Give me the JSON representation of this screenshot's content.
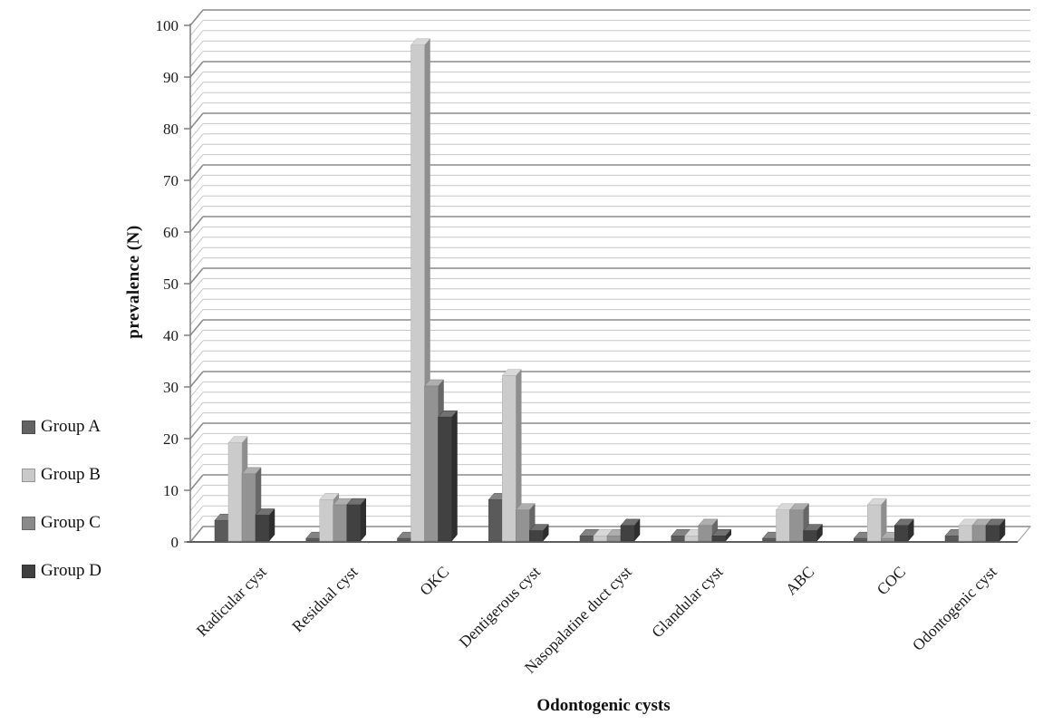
{
  "figure": {
    "y_axis_title": "prevalence (N)",
    "x_axis_title": "Odontogenic cysts"
  },
  "legend": {
    "position": "left",
    "items": [
      {
        "label": "Group A",
        "color": "#636363"
      },
      {
        "label": "Group B",
        "color": "#c9c9c9"
      },
      {
        "label": "Group C",
        "color": "#8a8a8a"
      },
      {
        "label": "Group D",
        "color": "#404040"
      }
    ]
  },
  "chart_data": {
    "type": "bar",
    "effect": "3d-clustered-column",
    "title": "",
    "xlabel": "Odontogenic cysts",
    "ylabel": "prevalence (N)",
    "categories": [
      "Radicular cyst",
      "Residual cyst",
      "OKC",
      "Dentigerous cyst",
      "Nasopalatine duct cyst",
      "Glandular cyst",
      "ABC",
      "COC",
      "Odontogenic cyst"
    ],
    "series": [
      {
        "name": "Group A",
        "color": "#5a5a5a",
        "values": [
          4,
          0.5,
          0.5,
          8,
          1,
          1,
          0.5,
          0.5,
          1
        ]
      },
      {
        "name": "Group B",
        "color": "#cbcbcb",
        "values": [
          19,
          8,
          96,
          32,
          1,
          1,
          6,
          7,
          3
        ]
      },
      {
        "name": "Group C",
        "color": "#939393",
        "values": [
          13,
          7,
          30,
          6,
          1,
          3,
          6,
          0.5,
          3
        ]
      },
      {
        "name": "Group D",
        "color": "#414141",
        "values": [
          5,
          7,
          24,
          2,
          3,
          1,
          2,
          3,
          3
        ]
      }
    ],
    "ylim": [
      0,
      100
    ],
    "yticks": [
      0,
      10,
      20,
      30,
      40,
      50,
      60,
      70,
      80,
      90,
      100
    ],
    "minor_gridline_step": 2,
    "grid": true,
    "gridline_major_color": "#8c8c8c",
    "gridline_minor_color": "#c6c6c6",
    "legend_position": "left",
    "category_label_rotation_deg": -45
  }
}
